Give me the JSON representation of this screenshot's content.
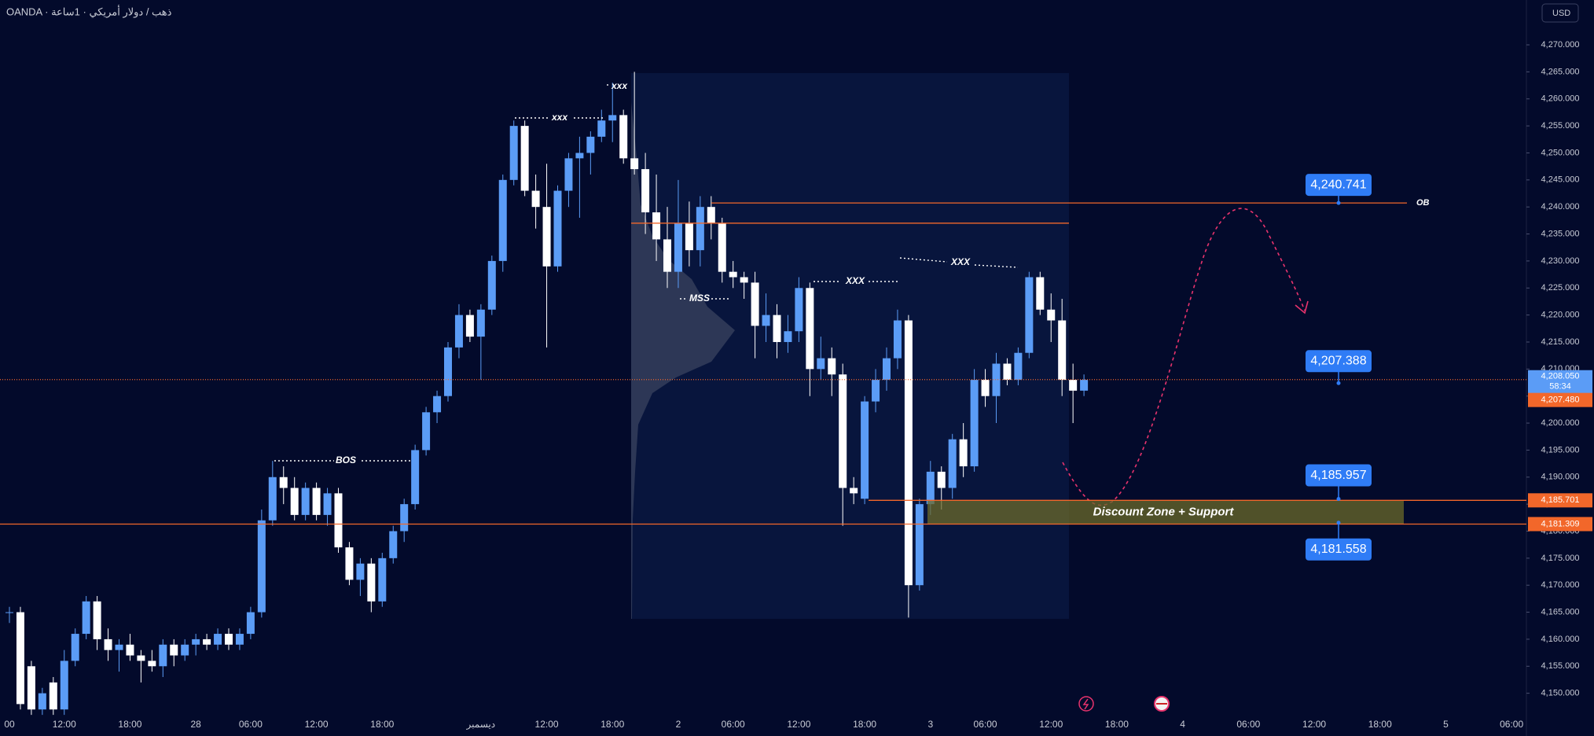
{
  "chart_data": {
    "type": "candlestick",
    "title": "OANDA · ذهب / دولار أمريكي · 1ساعة",
    "currency": "USD",
    "categories": [
      "00",
      null,
      null,
      null,
      null,
      "12:00",
      null,
      null,
      null,
      null,
      null,
      "18:00",
      null,
      null,
      null,
      null,
      null,
      "28",
      null,
      null,
      null,
      null,
      "06:00",
      null,
      null,
      null,
      null,
      null,
      "12:00",
      null,
      null,
      null,
      null,
      null,
      "18:00",
      null,
      null,
      null,
      null,
      null,
      null,
      null,
      null,
      "ديسمبر",
      null,
      null,
      null,
      null,
      null,
      "12:00",
      null,
      null,
      null,
      null,
      null,
      "18:00",
      null,
      null,
      null,
      null,
      null,
      "2",
      null,
      null,
      null,
      null,
      "06:00",
      null,
      null,
      null,
      null,
      null,
      "12:00",
      null,
      null,
      null,
      null,
      null,
      "18:00",
      null,
      null,
      null,
      null,
      null,
      "3",
      null,
      null,
      null,
      null,
      "06:00",
      null,
      null,
      null,
      null,
      null,
      "12:00",
      null,
      null,
      null,
      null,
      null,
      "18:00",
      null,
      null,
      null,
      null,
      null,
      "4",
      null,
      null,
      null,
      null,
      null,
      "06:00",
      null,
      null,
      null,
      null,
      null,
      "12:00",
      null,
      null,
      null,
      null,
      null,
      "18:00",
      null,
      null,
      null,
      null,
      null,
      "5",
      null,
      null,
      null,
      null,
      null,
      "06:00"
    ],
    "open": [
      4165,
      4165,
      4155,
      4147,
      4152,
      4147,
      4156,
      4161,
      4167,
      4160,
      4158,
      4159,
      4157,
      4156,
      4155,
      4159,
      4157,
      4159,
      4160,
      4159,
      4161,
      4159,
      4161,
      4165,
      4182,
      4190,
      4188,
      4183,
      4188,
      4183,
      4187,
      4177,
      4171,
      4174,
      4167,
      4175,
      4180,
      4185,
      4195,
      4202,
      4205,
      4214,
      4220,
      4216,
      4221,
      4230,
      4245,
      4255,
      4243,
      4240,
      4229,
      4243,
      4249,
      4250,
      4253,
      4256,
      4257,
      4249,
      4247,
      4239,
      4234,
      4228,
      4237,
      4232,
      4240,
      4237,
      4228,
      4227,
      4226,
      4218,
      4220,
      4215,
      4217,
      4225,
      4210,
      4212,
      4209,
      4188,
      4186,
      4204,
      4208,
      4212,
      4219,
      4170,
      4185,
      4191,
      4188,
      4197,
      4192,
      4208,
      4205,
      4211,
      4208,
      4213,
      4227,
      4221,
      4219,
      4208,
      4206,
      null,
      null,
      null,
      null,
      null,
      null,
      null,
      null,
      null,
      null,
      null,
      null,
      null,
      null,
      null,
      null,
      null,
      null,
      null,
      null,
      null,
      null,
      null,
      null,
      null,
      null,
      null,
      null,
      null,
      null,
      null,
      null,
      null,
      null,
      null,
      null,
      null,
      null,
      null
    ],
    "high": [
      4166,
      4166,
      4156,
      4151,
      4153,
      4158,
      4162,
      4168,
      4168,
      4162,
      4160,
      4161,
      4158,
      4158,
      4160,
      4160,
      4160,
      4161,
      4161,
      4162,
      4162,
      4162,
      4166,
      4184,
      4193,
      4192,
      4190,
      4189,
      4189,
      4188,
      4188,
      4178,
      4175,
      4175,
      4176,
      4181,
      4186,
      4196,
      4203,
      4206,
      4215,
      4222,
      4221,
      4222,
      4231,
      4246,
      4256,
      4256,
      4246,
      4248,
      4244,
      4250,
      4253,
      4254,
      4258,
      4263,
      4258,
      4265,
      4250,
      4246,
      4240,
      4245,
      4241,
      4242,
      4242,
      4238,
      4230,
      4228,
      4228,
      4224,
      4222,
      4220,
      4227,
      4226,
      4216,
      4214,
      4211,
      4190,
      4205,
      4210,
      4214,
      4221,
      4220,
      4186,
      4193,
      4192,
      4198,
      4200,
      4210,
      4210,
      4213,
      4212,
      4214,
      4228,
      4228,
      4224,
      4223,
      4211,
      4209,
      null,
      null,
      null,
      null,
      null,
      null,
      null,
      null,
      null,
      null,
      null,
      null,
      null,
      null,
      null,
      null,
      null,
      null,
      null,
      null,
      null,
      null,
      null,
      null,
      null,
      null,
      null,
      null,
      null,
      null,
      null,
      null,
      null,
      null,
      null,
      null,
      null,
      null,
      null
    ],
    "low": [
      4163,
      4147,
      4146,
      4146,
      4146,
      4146,
      4155,
      4160,
      4158,
      4156,
      4154,
      4156,
      4152,
      4154,
      4153,
      4155,
      4156,
      4157,
      4158,
      4158,
      4158,
      4158,
      4160,
      4164,
      4181,
      4185,
      4182,
      4182,
      4182,
      4181,
      4176,
      4170,
      4168,
      4165,
      4166,
      4174,
      4178,
      4184,
      4194,
      4200,
      4204,
      4212,
      4215,
      4208,
      4220,
      4228,
      4244,
      4242,
      4236,
      4214,
      4228,
      4240,
      4238,
      4246,
      4252,
      4252,
      4248,
      4246,
      4235,
      4230,
      4225,
      4225,
      4229,
      4229,
      4234,
      4226,
      4225,
      4223,
      4212,
      4215,
      4212,
      4213,
      4215,
      4205,
      4208,
      4205,
      4181,
      4185,
      4185,
      4202,
      4206,
      4210,
      4164,
      4169,
      4183,
      4184,
      4186,
      4190,
      4191,
      4203,
      4200,
      4207,
      4207,
      4212,
      4220,
      4215,
      4205,
      4200,
      4205,
      null,
      null,
      null,
      null,
      null,
      null,
      null,
      null,
      null,
      null,
      null,
      null,
      null,
      null,
      null,
      null,
      null,
      null,
      null,
      null,
      null,
      null,
      null,
      null,
      null,
      null,
      null,
      null,
      null,
      null,
      null,
      null,
      null,
      null,
      null,
      null,
      null,
      null,
      null
    ],
    "close": [
      4165,
      4148,
      4147,
      4150,
      4147,
      4156,
      4161,
      4167,
      4160,
      4158,
      4159,
      4157,
      4156,
      4155,
      4159,
      4157,
      4159,
      4160,
      4159,
      4161,
      4159,
      4161,
      4165,
      4182,
      4190,
      4188,
      4183,
      4188,
      4183,
      4187,
      4177,
      4171,
      4174,
      4167,
      4175,
      4180,
      4185,
      4195,
      4202,
      4205,
      4214,
      4220,
      4216,
      4221,
      4230,
      4245,
      4255,
      4243,
      4240,
      4229,
      4243,
      4249,
      4250,
      4253,
      4256,
      4257,
      4249,
      4247,
      4239,
      4234,
      4228,
      4237,
      4232,
      4240,
      4237,
      4228,
      4227,
      4226,
      4218,
      4220,
      4215,
      4217,
      4225,
      4210,
      4212,
      4209,
      4188,
      4187,
      4204,
      4208,
      4212,
      4219,
      4170,
      4185,
      4191,
      4188,
      4197,
      4192,
      4208,
      4205,
      4211,
      4208,
      4213,
      4227,
      4221,
      4219,
      4208,
      4206,
      4208,
      null,
      null,
      null,
      null,
      null,
      null,
      null,
      null,
      null,
      null,
      null,
      null,
      null,
      null,
      null,
      null,
      null,
      null,
      null,
      null,
      null,
      null,
      null,
      null,
      null,
      null,
      null,
      null,
      null,
      null,
      null,
      null,
      null,
      null,
      null,
      null,
      null,
      null,
      null
    ],
    "up_color": "#5b9cf6",
    "down_color": "#ffffff",
    "ylim": [
      4145,
      4278.3
    ],
    "yticks": [
      {
        "value": 4150,
        "label": "4,150.000"
      },
      {
        "value": 4155,
        "label": "4,155.000"
      },
      {
        "value": 4160,
        "label": "4,160.000"
      },
      {
        "value": 4165,
        "label": "4,165.000"
      },
      {
        "value": 4170,
        "label": "4,170.000"
      },
      {
        "value": 4175,
        "label": "4,175.000"
      },
      {
        "value": 4180,
        "label": "4,180.000"
      },
      {
        "value": 4185,
        "label": "4,185.000"
      },
      {
        "value": 4190,
        "label": "4,190.000"
      },
      {
        "value": 4195,
        "label": "4,195.000"
      },
      {
        "value": 4200,
        "label": "4,200.000"
      },
      {
        "value": 4205,
        "label": "4,205.000"
      },
      {
        "value": 4210,
        "label": "4,210.000"
      },
      {
        "value": 4215,
        "label": "4,215.000"
      },
      {
        "value": 4220,
        "label": "4,220.000"
      },
      {
        "value": 4225,
        "label": "4,225.000"
      },
      {
        "value": 4230,
        "label": "4,230.000"
      },
      {
        "value": 4235,
        "label": "4,235.000"
      },
      {
        "value": 4240,
        "label": "4,240.000"
      },
      {
        "value": 4245,
        "label": "4,245.000"
      },
      {
        "value": 4250,
        "label": "4,250.000"
      },
      {
        "value": 4255,
        "label": "4,255.000"
      },
      {
        "value": 4260,
        "label": "4,260.000"
      },
      {
        "value": 4265,
        "label": "4,265.000"
      },
      {
        "value": 4270,
        "label": "4,270.000"
      }
    ],
    "levels": [
      {
        "value": 4240.741,
        "label": "4,240.741"
      },
      {
        "value": 4207.388,
        "label": "4,207.388"
      },
      {
        "value": 4185.957,
        "label": "4,185.957"
      },
      {
        "value": 4181.558,
        "label": "4,181.558"
      }
    ],
    "horizontal_lines": [
      {
        "value": 4240.741,
        "label": "OB"
      },
      {
        "value": 4237
      },
      {
        "value": 4185.701,
        "label": "4,185.701"
      },
      {
        "value": 4181.309,
        "label": "4,181.309"
      }
    ],
    "current_price": {
      "value": 4208.05,
      "label": "4,208.050",
      "countdown": "58:34"
    },
    "bid": {
      "value": 4207.48,
      "label": "4,207.480"
    },
    "zone": {
      "label": "Discount Zone + Support",
      "low": 4181.309,
      "high": 4185.701
    },
    "annotations": [
      "xxx",
      "xxx",
      "XXX",
      "XXX",
      "MSS",
      "BOS"
    ],
    "line_color": "#f2672a"
  }
}
